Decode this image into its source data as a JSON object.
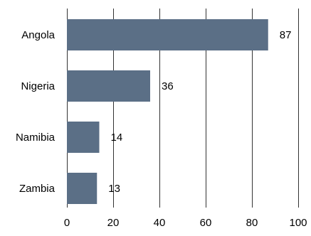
{
  "chart_data": {
    "type": "bar",
    "orientation": "horizontal",
    "categories": [
      "Angola",
      "Nigeria",
      "Namibia",
      "Zambia"
    ],
    "values": [
      87,
      36,
      14,
      13
    ],
    "data_labels": [
      "87",
      "36",
      "14",
      "13"
    ],
    "title": "",
    "xlabel": "",
    "ylabel": "",
    "xlim": [
      0,
      100
    ],
    "xticks": [
      0,
      20,
      40,
      60,
      80,
      100
    ],
    "xtick_labels": [
      "0",
      "20",
      "40",
      "60",
      "80",
      "100"
    ],
    "grid": "vertical",
    "legend": "none",
    "bar_color": "#5b6f86",
    "grid_color": "#333333"
  }
}
